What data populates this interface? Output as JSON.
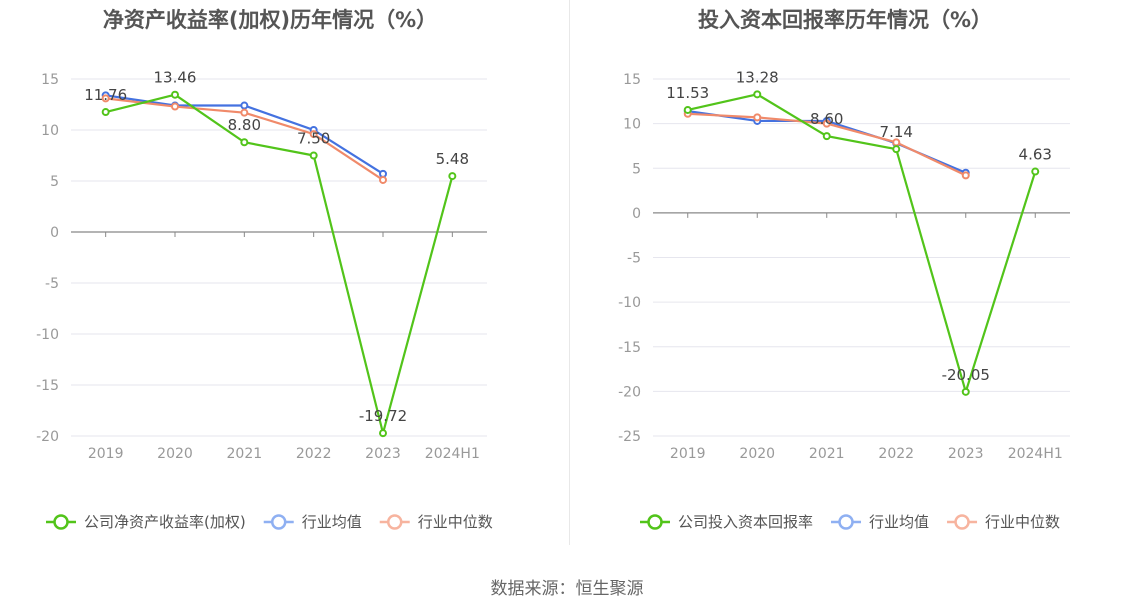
{
  "charts_meta": {
    "series_colors": [
      "#52c41a",
      "#4472e0",
      "#f08a6a"
    ],
    "legend_colors": [
      "#52c41a",
      "#8fb0f2",
      "#f7b49f"
    ]
  },
  "chart_data": [
    {
      "type": "line",
      "title": "净资产收益率(加权)历年情况（%）",
      "categories": [
        "2019",
        "2020",
        "2021",
        "2022",
        "2023",
        "2024H1"
      ],
      "ylim": [
        -20,
        15
      ],
      "yticks": [
        15,
        10,
        5,
        0,
        -5,
        -10,
        -15,
        -20
      ],
      "grid": true,
      "legend_position": "bottom",
      "series": [
        {
          "name": "公司净资产收益率(加权)",
          "values": [
            11.76,
            13.46,
            8.8,
            7.5,
            -19.72,
            5.48
          ],
          "labels": [
            "11.76",
            "13.46",
            "8.80",
            "7.50",
            "-19.72",
            "5.48"
          ]
        },
        {
          "name": "行业均值",
          "values": [
            13.4,
            12.4,
            12.4,
            10.0,
            5.7,
            null
          ]
        },
        {
          "name": "行业中位数",
          "values": [
            13.1,
            12.3,
            11.7,
            9.6,
            5.1,
            null
          ]
        }
      ]
    },
    {
      "type": "line",
      "title": "投入资本回报率历年情况（%）",
      "categories": [
        "2019",
        "2020",
        "2021",
        "2022",
        "2023",
        "2024H1"
      ],
      "ylim": [
        -25,
        15
      ],
      "yticks": [
        15,
        10,
        5,
        0,
        -5,
        -10,
        -15,
        -20,
        -25
      ],
      "grid": true,
      "legend_position": "bottom",
      "series": [
        {
          "name": "公司投入资本回报率",
          "values": [
            11.53,
            13.28,
            8.6,
            7.14,
            -20.05,
            4.63
          ],
          "labels": [
            "11.53",
            "13.28",
            "8.60",
            "7.14",
            "-20.05",
            "4.63"
          ]
        },
        {
          "name": "行业均值",
          "values": [
            11.4,
            10.3,
            10.3,
            7.8,
            4.5,
            null
          ]
        },
        {
          "name": "行业中位数",
          "values": [
            11.1,
            10.7,
            10.0,
            7.9,
            4.2,
            null
          ]
        }
      ]
    }
  ],
  "source": "数据来源：恒生聚源"
}
